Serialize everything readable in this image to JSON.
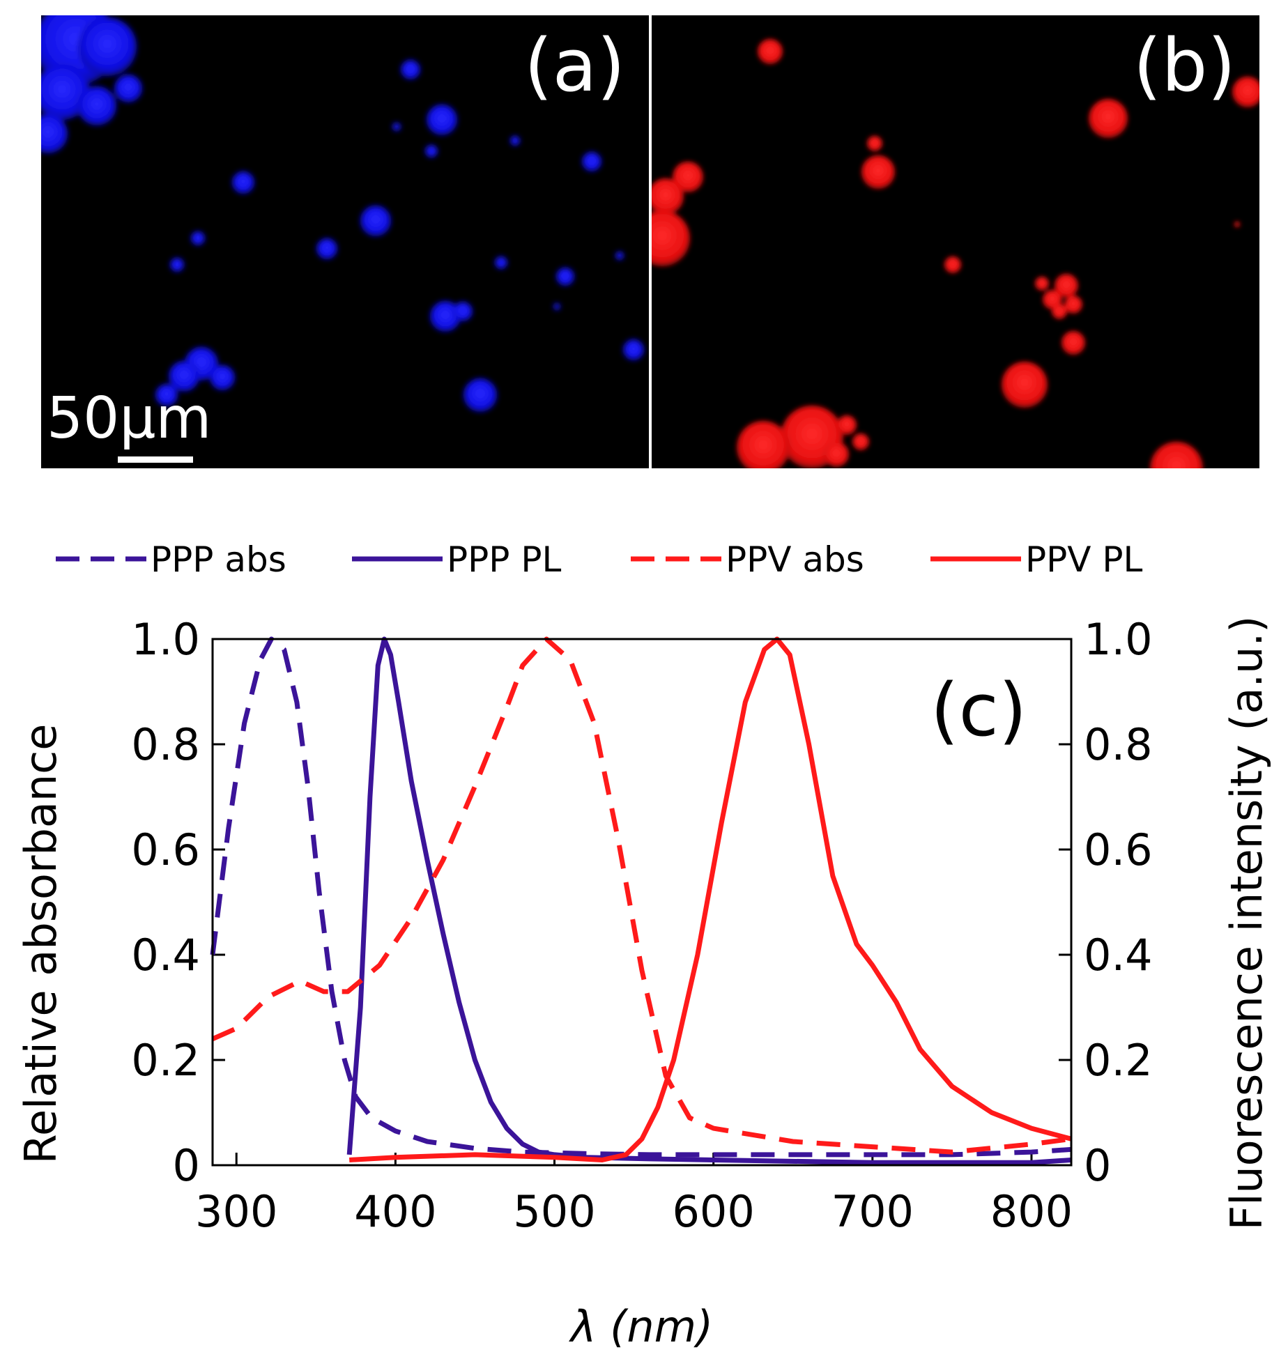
{
  "panels": {
    "a": {
      "label": "(a)",
      "scale_bar": "50μm",
      "color": "#1010ff"
    },
    "b": {
      "label": "(b)",
      "color": "#ff1a1a"
    },
    "c": {
      "label": "(c)"
    }
  },
  "chart_data": {
    "type": "line",
    "title": "",
    "xlabel": "λ (nm)",
    "ylabel": "Relative absorbance",
    "ylabel_right": "Fluorescence intensity (a.u.)",
    "xlim": [
      285,
      825
    ],
    "ylim": [
      0,
      1.0
    ],
    "xticks": [
      300,
      400,
      500,
      600,
      700,
      800
    ],
    "yticks": [
      0,
      0.2,
      0.4,
      0.6,
      0.8,
      1.0
    ],
    "ytick_labels": [
      "0",
      "0.2",
      "0.4",
      "0.6",
      "0.8",
      "1.0"
    ],
    "legend_position": "top",
    "series": [
      {
        "name": "PPP abs",
        "color": "#3b1499",
        "dash": true,
        "x": [
          285,
          295,
          305,
          315,
          322,
          330,
          338,
          345,
          352,
          360,
          368,
          375,
          385,
          400,
          420,
          450,
          480,
          520,
          560,
          600,
          650,
          700,
          750,
          800,
          825
        ],
        "y": [
          0.4,
          0.64,
          0.84,
          0.96,
          1.0,
          0.98,
          0.88,
          0.72,
          0.52,
          0.33,
          0.2,
          0.13,
          0.09,
          0.065,
          0.045,
          0.032,
          0.025,
          0.022,
          0.02,
          0.02,
          0.02,
          0.02,
          0.02,
          0.025,
          0.03
        ]
      },
      {
        "name": "PPP PL",
        "color": "#3b1499",
        "dash": false,
        "x": [
          371,
          378,
          384,
          389,
          393,
          397,
          402,
          410,
          420,
          430,
          440,
          450,
          460,
          470,
          480,
          490,
          500,
          520,
          560,
          600,
          700,
          800,
          825
        ],
        "y": [
          0.02,
          0.3,
          0.7,
          0.95,
          1.0,
          0.97,
          0.88,
          0.73,
          0.58,
          0.44,
          0.31,
          0.2,
          0.12,
          0.07,
          0.04,
          0.025,
          0.02,
          0.015,
          0.012,
          0.01,
          0.005,
          0.005,
          0.01
        ]
      },
      {
        "name": "PPV abs",
        "color": "#ff1a1a",
        "dash": true,
        "x": [
          285,
          300,
          320,
          340,
          355,
          370,
          390,
          410,
          430,
          450,
          470,
          480,
          495,
          510,
          525,
          540,
          555,
          570,
          585,
          600,
          650,
          700,
          750,
          800,
          825
        ],
        "y": [
          0.24,
          0.26,
          0.32,
          0.35,
          0.33,
          0.33,
          0.38,
          0.47,
          0.58,
          0.72,
          0.87,
          0.95,
          1.0,
          0.96,
          0.84,
          0.62,
          0.37,
          0.17,
          0.09,
          0.07,
          0.045,
          0.035,
          0.025,
          0.04,
          0.05
        ]
      },
      {
        "name": "PPV PL",
        "color": "#ff1a1a",
        "dash": false,
        "x": [
          371,
          400,
          450,
          500,
          530,
          545,
          555,
          565,
          575,
          590,
          605,
          620,
          632,
          640,
          648,
          660,
          675,
          690,
          700,
          715,
          730,
          750,
          775,
          800,
          825
        ],
        "y": [
          0.01,
          0.015,
          0.02,
          0.015,
          0.01,
          0.02,
          0.05,
          0.11,
          0.2,
          0.4,
          0.65,
          0.88,
          0.98,
          1.0,
          0.97,
          0.8,
          0.55,
          0.42,
          0.38,
          0.31,
          0.22,
          0.15,
          0.1,
          0.07,
          0.05
        ]
      }
    ]
  }
}
